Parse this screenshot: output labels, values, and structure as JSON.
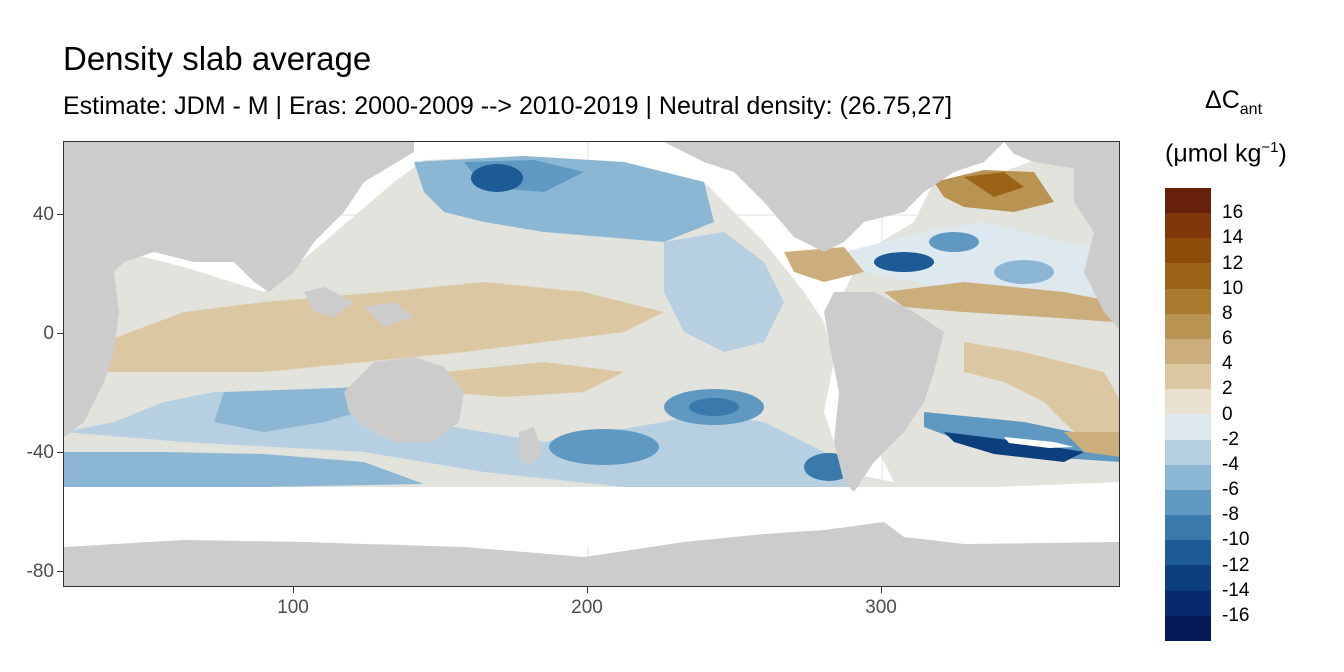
{
  "title": "Density slab average",
  "subtitle": "Estimate: JDM - M | Eras: 2000-2009 --> 2010-2019 | Neutral density: (26.75,27]",
  "axes": {
    "y_ticks": [
      "40",
      "0",
      "-40",
      "-80"
    ],
    "x_ticks": [
      "100",
      "200",
      "300"
    ]
  },
  "legend": {
    "title_delta": "ΔC",
    "title_sub": "ant",
    "title_unit_open": "(μmol kg",
    "title_unit_sup": "−1",
    "title_unit_close": ")",
    "labels": [
      "16",
      "14",
      "12",
      "10",
      "8",
      "6",
      "4",
      "2",
      "0",
      "-2",
      "-4",
      "-6",
      "-8",
      "-10",
      "-12",
      "-14",
      "-16"
    ],
    "colors": [
      "#67200a",
      "#7f360a",
      "#8c4d0a",
      "#9c6216",
      "#aa7a2e",
      "#b99352",
      "#cbae7b",
      "#dbc8a2",
      "#e9e0cf",
      "#dde8ef",
      "#b6d0e2",
      "#8cb7d4",
      "#5f99c1",
      "#3979ab",
      "#1c5b95",
      "#0d3f7f",
      "#08296b",
      "#051a59"
    ]
  },
  "chart_data": {
    "type": "heatmap",
    "title": "Density slab average",
    "subtitle": "Estimate: JDM - M | Eras: 2000-2009 --> 2010-2019 | Neutral density: (26.75,27]",
    "xlim": [
      20,
      380
    ],
    "ylim": [
      -85,
      65
    ],
    "x_ticks": [
      100,
      200,
      300
    ],
    "y_ticks": [
      40,
      0,
      -40,
      -80
    ],
    "color_scale": {
      "variable": "ΔCant",
      "unit": "μmol kg−1",
      "breaks": [
        16,
        14,
        12,
        10,
        8,
        6,
        4,
        2,
        0,
        -2,
        -4,
        -6,
        -8,
        -10,
        -12,
        -14,
        -16
      ]
    },
    "land_color": "#cccccc",
    "grid": true
  }
}
